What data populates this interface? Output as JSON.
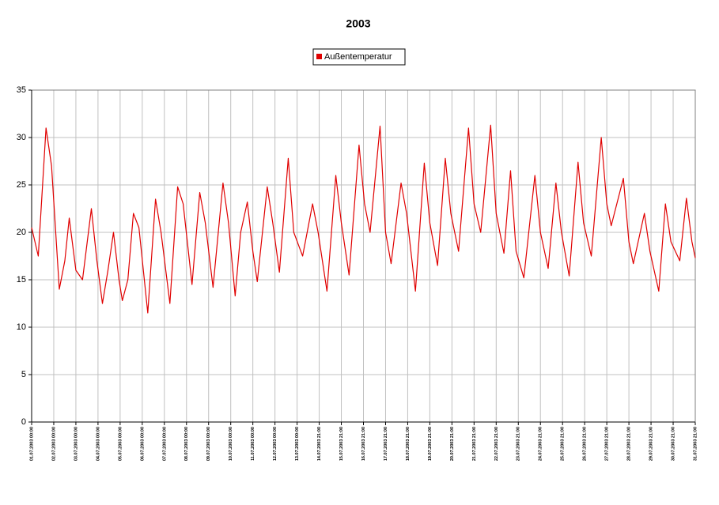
{
  "chart_data": {
    "type": "line",
    "title": "2003",
    "grid": true,
    "legend": "top",
    "x": [
      0,
      0.3,
      0.65,
      0.9,
      1.25,
      1.5,
      1.7,
      2.0,
      2.3,
      2.7,
      2.95,
      3.2,
      3.45,
      3.7,
      3.95,
      4.1,
      4.35,
      4.6,
      4.85,
      5.25,
      5.6,
      5.85,
      6.25,
      6.6,
      6.85,
      7.25,
      7.6,
      7.85,
      8.2,
      8.65,
      8.9,
      9.2,
      9.45,
      9.75,
      10.0,
      10.2,
      10.65,
      10.9,
      11.2,
      11.6,
      11.85,
      12.25,
      12.7,
      12.95,
      13.35,
      13.75,
      14.0,
      14.35,
      14.8,
      15.05,
      15.3,
      15.75,
      16.0,
      16.25,
      16.7,
      16.95,
      17.35,
      17.75,
      18.0,
      18.35,
      18.7,
      18.95,
      19.3,
      19.75,
      20.0,
      20.3,
      20.75,
      21.0,
      21.35,
      21.65,
      21.9,
      22.25,
      22.75,
      23.0,
      23.35,
      23.7,
      23.95,
      24.3,
      24.7,
      24.95,
      25.3,
      25.75,
      26.0,
      26.2,
      26.75,
      27.0,
      27.2,
      27.7,
      27.95,
      28.35,
      28.65,
      28.9,
      29.3,
      29.6,
      29.85,
      30.0
    ],
    "series": [
      {
        "name": "Außentemperatur",
        "color": "#e00000",
        "values": [
          20.5,
          17.5,
          31,
          27,
          14,
          17,
          21.5,
          16,
          15,
          22.5,
          17,
          12.5,
          16,
          20,
          15,
          12.8,
          15,
          22,
          20.5,
          11.5,
          23.5,
          20,
          12.5,
          24.8,
          23,
          14.5,
          24.2,
          21,
          14.2,
          25.2,
          21,
          13.3,
          20,
          23.2,
          18,
          14.8,
          24.8,
          21,
          15.8,
          27.8,
          20,
          17.5,
          23,
          20,
          13.8,
          26,
          21,
          15.5,
          29.2,
          23,
          20,
          31.2,
          20,
          16.7,
          25.2,
          22,
          13.8,
          27.3,
          21,
          16.5,
          27.8,
          22,
          18,
          31,
          23,
          20,
          31.3,
          22,
          17.8,
          26.5,
          18,
          15.2,
          26,
          20,
          16.2,
          25.2,
          20,
          15.4,
          27.4,
          21,
          17.5,
          30,
          23,
          20.7,
          25.7,
          19,
          16.7,
          22,
          18,
          13.8,
          23,
          19,
          17,
          23.6,
          19,
          17.3
        ]
      }
    ],
    "xlim": [
      0,
      30
    ],
    "xticks": [
      {
        "value": 0,
        "label": "01.07.2003 00:00"
      },
      {
        "value": 1,
        "label": "02.07.2003 00:00"
      },
      {
        "value": 2,
        "label": "03.07.2003 00:00"
      },
      {
        "value": 3,
        "label": "04.07.2003 00:00"
      },
      {
        "value": 4,
        "label": "05.07.2003 00:00"
      },
      {
        "value": 5,
        "label": "06.07.2003 00:00"
      },
      {
        "value": 6,
        "label": "07.07.2003 00:00"
      },
      {
        "value": 7,
        "label": "08.07.2003 00:00"
      },
      {
        "value": 8,
        "label": "09.07.2003 00:00"
      },
      {
        "value": 9,
        "label": "10.07.2003 00:00"
      },
      {
        "value": 10,
        "label": "11.07.2003 00:00"
      },
      {
        "value": 11,
        "label": "12.07.2003 00:00"
      },
      {
        "value": 12,
        "label": "13.07.2003 00:00"
      },
      {
        "value": 13,
        "label": "14.07.2003 21:00"
      },
      {
        "value": 14,
        "label": "15.07.2003 21:00"
      },
      {
        "value": 15,
        "label": "16.07.2003 21:00"
      },
      {
        "value": 16,
        "label": "17.07.2003 21:00"
      },
      {
        "value": 17,
        "label": "18.07.2003 21:00"
      },
      {
        "value": 18,
        "label": "19.07.2003 21:00"
      },
      {
        "value": 19,
        "label": "20.07.2003 21:00"
      },
      {
        "value": 20,
        "label": "21.07.2003 21:00"
      },
      {
        "value": 21,
        "label": "22.07.2003 21:00"
      },
      {
        "value": 22,
        "label": "23.07.2003 21:00"
      },
      {
        "value": 23,
        "label": "24.07.2003 21:00"
      },
      {
        "value": 24,
        "label": "25.07.2003 21:00"
      },
      {
        "value": 25,
        "label": "26.07.2003 21:00"
      },
      {
        "value": 26,
        "label": "27.07.2003 21:00"
      },
      {
        "value": 27,
        "label": "28.07.2003 21:00"
      },
      {
        "value": 28,
        "label": "29.07.2003 21:00"
      },
      {
        "value": 29,
        "label": "30.07.2003 21:00"
      },
      {
        "value": 30,
        "label": "31.07.2003 21:00"
      }
    ],
    "ylim": [
      0,
      35
    ],
    "yticks": [
      0,
      5,
      10,
      15,
      20,
      25,
      30,
      35
    ]
  }
}
